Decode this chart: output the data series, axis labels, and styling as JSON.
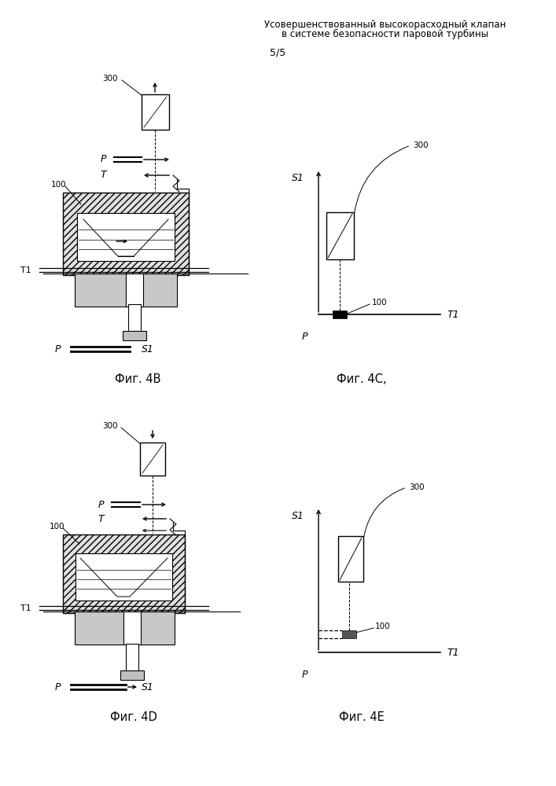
{
  "title_line1": "Усовершенствованный высокорасходный клапан",
  "title_line2": "в системе безопасности паровой турбины",
  "page_label": "5/5",
  "fig4B_label": "Фиг. 4B",
  "fig4C_label": "Фиг. 4C,",
  "fig4D_label": "Фиг. 4D",
  "fig4E_label": "Фиг. 4E",
  "bg_color": "#ffffff",
  "line_color": "#000000"
}
